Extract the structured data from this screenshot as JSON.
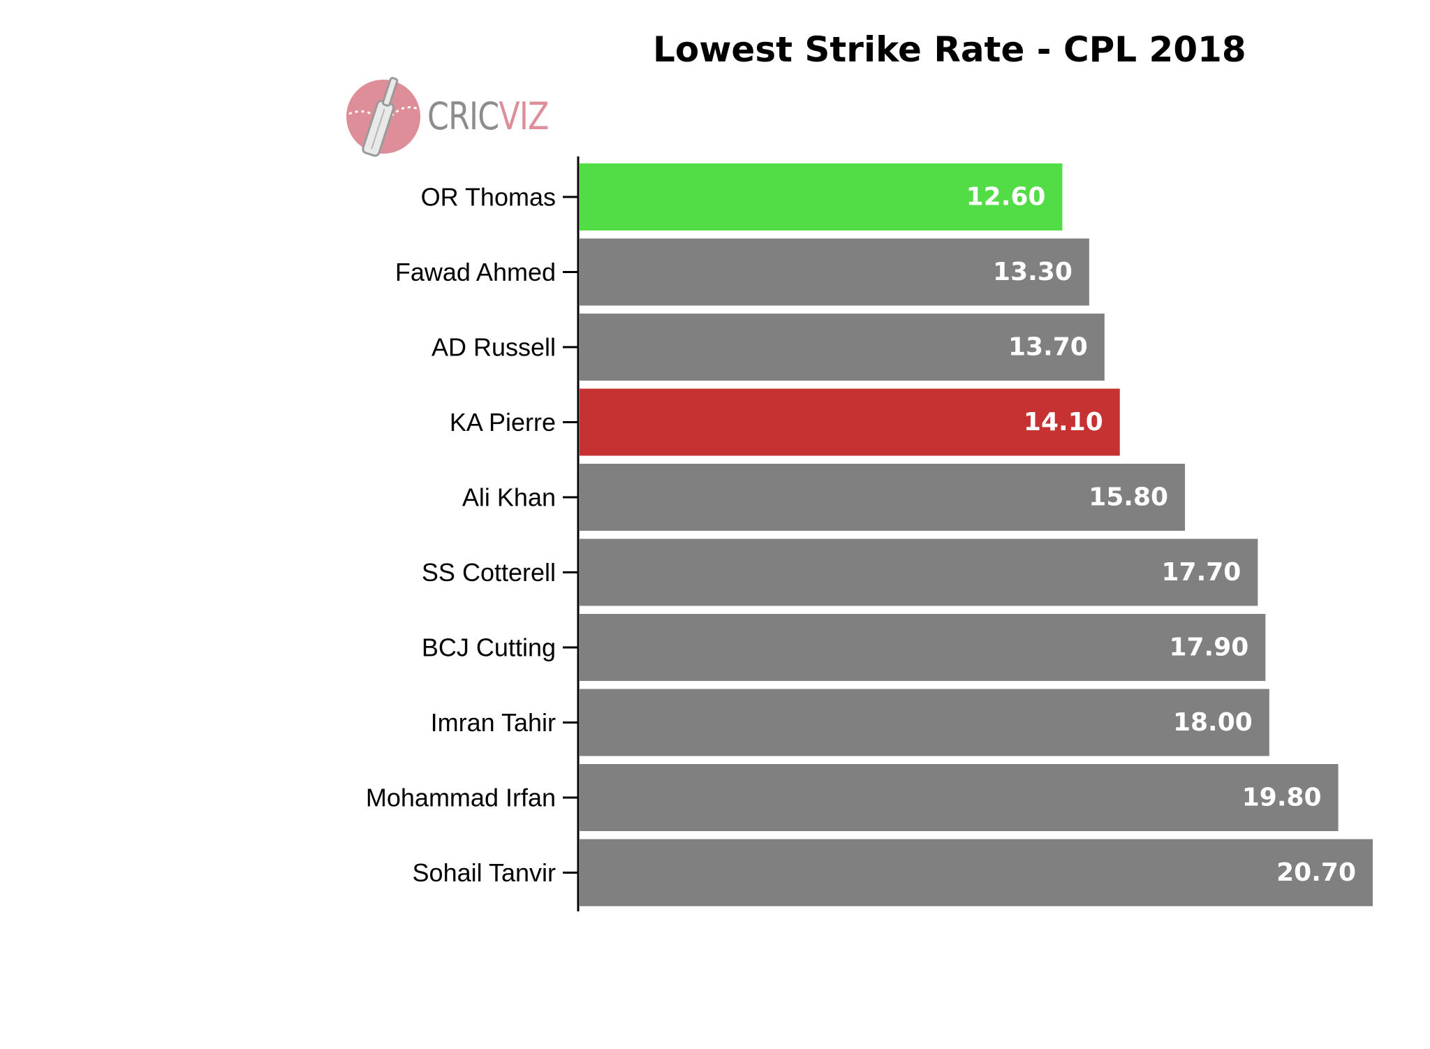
{
  "chart_data": {
    "type": "bar",
    "orientation": "horizontal",
    "title": "Lowest Strike Rate - CPL 2018",
    "xlabel": "",
    "ylabel": "",
    "categories": [
      "OR Thomas",
      "Fawad Ahmed",
      "AD Russell",
      "KA Pierre",
      "Ali Khan",
      "SS Cotterell",
      "BCJ Cutting",
      "Imran Tahir",
      "Mohammad Irfan",
      "Sohail Tanvir"
    ],
    "values": [
      12.6,
      13.3,
      13.7,
      14.1,
      15.8,
      17.7,
      17.9,
      18.0,
      19.8,
      20.7
    ],
    "value_labels": [
      "12.60",
      "13.30",
      "13.70",
      "14.10",
      "15.80",
      "17.70",
      "17.90",
      "18.00",
      "19.80",
      "20.70"
    ],
    "bar_colors": [
      "#52dc46",
      "#808080",
      "#808080",
      "#808080",
      "#808080",
      "#808080",
      "#808080",
      "#808080",
      "#808080",
      "#808080"
    ],
    "highlight_colors": {
      "best": "#52dc46",
      "highlight": "#c63232",
      "default": "#808080"
    },
    "highlighted": {
      "KA Pierre": "#c63232"
    },
    "xlim": [
      0,
      20.7
    ],
    "grid": false,
    "legend": "none"
  },
  "branding": {
    "logo_text_grey": "CRIC",
    "logo_text_pink": "VIZ",
    "logo_icon": "cricket-bat-ball-icon",
    "logo_colors": {
      "circle": "#dd8e98",
      "text_grey": "#8c8c8c",
      "text_pink": "#dd8e98"
    }
  }
}
